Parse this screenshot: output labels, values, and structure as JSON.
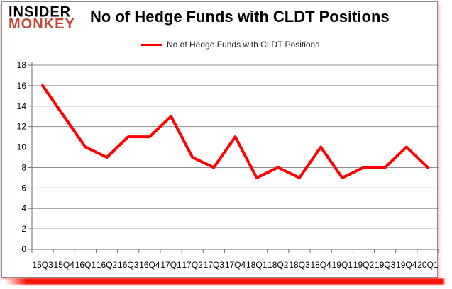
{
  "logo": {
    "line1": "INSIDER",
    "line2": "MONKEY"
  },
  "header": {
    "title": "No of Hedge Funds with CLDT Positions"
  },
  "legend": {
    "label": "No of Hedge Funds with CLDT Positions"
  },
  "colors": {
    "line_red": "#fe0100",
    "logo_red": "#c64734",
    "grid_gray": "#8e8e8e",
    "axis_gray": "#6e6e6e",
    "tick_text": "#000000"
  },
  "chart_data": {
    "type": "line",
    "title": "No of Hedge Funds with CLDT Positions",
    "series": [
      {
        "name": "No of Hedge Funds with CLDT Positions",
        "values": [
          16,
          13,
          10,
          9,
          11,
          11,
          13,
          9,
          8,
          11,
          7,
          8,
          7,
          10,
          7,
          8,
          8,
          10,
          8
        ]
      }
    ],
    "categories": [
      "15Q3",
      "15Q4",
      "16Q1",
      "16Q2",
      "16Q3",
      "16Q4",
      "17Q1",
      "17Q2",
      "17Q3",
      "17Q4",
      "18Q1",
      "18Q2",
      "18Q3",
      "18Q4",
      "19Q1",
      "19Q2",
      "19Q3",
      "19Q4",
      "20Q1"
    ],
    "xlabel": "",
    "ylabel": "",
    "ylim": [
      0,
      18
    ],
    "ytick_step": 2,
    "grid": true,
    "legend_position": "top"
  }
}
